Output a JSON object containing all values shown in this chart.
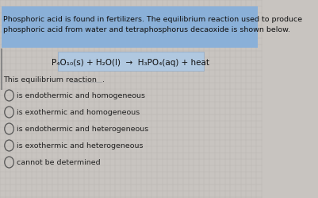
{
  "bg_color": "#c8c4c0",
  "header_bg": "#8ab0d8",
  "header_text_color": "#111111",
  "header_text_line1": "Phosphoric acid is found in fertilizers. The equilibrium reaction used to produce",
  "header_text_line2": "phosphoric acid from water and tetraphosphorus decaoxide is shown below.",
  "equation_bg": "#b0c8e0",
  "equation": "P₄O₁₀(s) + H₂O(l)  →  H₃PO₄(aq) + heat",
  "fill_blank_text": "This equilibrium reaction",
  "options": [
    "is endothermic and homogeneous",
    "is exothermic and homogeneous",
    "is endothermic and heterogeneous",
    "is exothermic and heterogeneous",
    "cannot be determined"
  ],
  "option_text_color": "#222222",
  "font_size_header": 6.8,
  "font_size_eq": 7.5,
  "font_size_options": 6.8,
  "font_size_blank": 6.8
}
